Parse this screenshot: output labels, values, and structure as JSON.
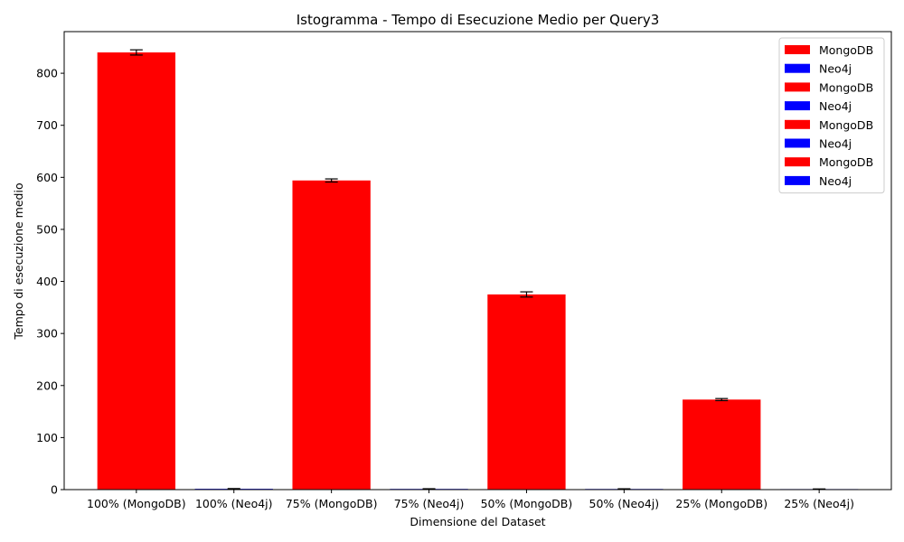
{
  "chart_data": {
    "type": "bar",
    "title": "Istogramma - Tempo di Esecuzione Medio per Query3",
    "xlabel": "Dimensione del Dataset",
    "ylabel": "Tempo di esecuzione medio",
    "ylim": [
      0,
      880
    ],
    "yticks": [
      0,
      100,
      200,
      300,
      400,
      500,
      600,
      700,
      800
    ],
    "grid": false,
    "legend_position": "top-right",
    "categories": [
      "100% (MongoDB)",
      "100% (Neo4j)",
      "75% (MongoDB)",
      "75% (Neo4j)",
      "50% (MongoDB)",
      "50% (Neo4j)",
      "25% (MongoDB)",
      "25% (Neo4j)"
    ],
    "values": [
      840,
      1.5,
      594,
      1.3,
      375,
      1.2,
      173,
      1.0
    ],
    "errors": [
      5,
      0.5,
      3,
      0.4,
      5,
      0.4,
      2,
      0.3
    ],
    "bar_colors": [
      "#ff0000",
      "#0000ff",
      "#ff0000",
      "#0000ff",
      "#ff0000",
      "#0000ff",
      "#ff0000",
      "#0000ff"
    ],
    "legend": [
      {
        "label": "MongoDB",
        "color": "#ff0000"
      },
      {
        "label": "Neo4j",
        "color": "#0000ff"
      },
      {
        "label": "MongoDB",
        "color": "#ff0000"
      },
      {
        "label": "Neo4j",
        "color": "#0000ff"
      },
      {
        "label": "MongoDB",
        "color": "#ff0000"
      },
      {
        "label": "Neo4j",
        "color": "#0000ff"
      },
      {
        "label": "MongoDB",
        "color": "#ff0000"
      },
      {
        "label": "Neo4j",
        "color": "#0000ff"
      }
    ]
  }
}
